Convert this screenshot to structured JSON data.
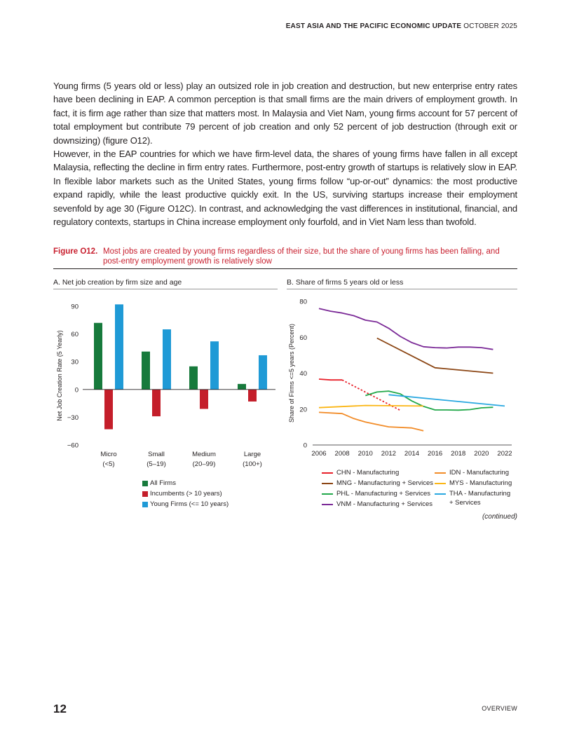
{
  "header": {
    "title": "EAST ASIA AND THE PACIFIC ECONOMIC UPDATE",
    "date": "OCTOBER 2025"
  },
  "paragraphs": [
    "Young firms (5 years old or less) play an outsized role in job creation and destruction, but new enterprise entry rates have been declining in EAP. A common perception is that small firms are the main drivers of employment growth. In fact, it is firm age rather than size that matters most. In Malaysia and Viet Nam, young firms account for 57 percent of total employment but contribute 79 percent of job creation and only 52 percent of job destruction (through exit or downsizing) (figure O12).",
    "However, in the EAP countries for which we have firm-level data, the shares of young firms have fallen in all except Malaysia, reflecting the decline in firm entry rates. Furthermore, post-entry growth of startups is relatively slow in EAP. In flexible labor markets such as the United States, young firms follow “up-or-out” dynamics: the most productive expand rapidly, while the least productive quickly exit. In the US, surviving startups increase their employment sevenfold by age 30 (Figure O12C). In contrast, and acknowledging the vast differences in institutional, financial, and regulatory contexts, startups in China increase employment only fourfold, and in Viet Nam less than twofold."
  ],
  "figure": {
    "label": "Figure O12.",
    "caption": "Most jobs are created by young firms regardless of their size, but the share of young firms has been falling, and post-entry employment growth is relatively slow",
    "continued": "(continued)"
  },
  "chart_data": [
    {
      "type": "bar",
      "title": "A. Net job creation by firm size and age",
      "ylabel": "Net Job Creation Rate (5 Yearly)",
      "ylim": [
        -60,
        90
      ],
      "yticks": [
        "90",
        "60",
        "30",
        "0",
        "−30",
        "−60"
      ],
      "ytick_values": [
        90,
        60,
        30,
        0,
        -30,
        -60
      ],
      "categories": [
        [
          "Micro",
          "(<5)"
        ],
        [
          "Small",
          "(5–19)"
        ],
        [
          "Medium",
          "(20–99)"
        ],
        [
          "Large",
          "(100+)"
        ]
      ],
      "series": [
        {
          "name": "All Firms",
          "color": "#177a3c",
          "values": [
            72,
            41,
            25,
            6
          ]
        },
        {
          "name": "Incumbents (> 10 years)",
          "color": "#c41e2a",
          "values": [
            -43,
            -29,
            -21,
            -13
          ]
        },
        {
          "name": "Young Firms (<= 10 years)",
          "color": "#1f9ad6",
          "values": [
            92,
            65,
            52,
            37
          ]
        }
      ],
      "legend": "bottom",
      "grid": false
    },
    {
      "type": "line",
      "title": "B. Share of firms 5 years old or less",
      "ylabel": "Share of  Firms <=5 years (Percent)",
      "ylim": [
        0,
        80
      ],
      "xlim": [
        2006,
        2022
      ],
      "yticks": [
        "0",
        "20",
        "40",
        "60",
        "80"
      ],
      "ytick_values": [
        0,
        20,
        40,
        60,
        80
      ],
      "xticks": [
        "2006",
        "2008",
        "2010",
        "2012",
        "2014",
        "2016",
        "2018",
        "2020",
        "2022"
      ],
      "xtick_values": [
        2006,
        2008,
        2010,
        2012,
        2014,
        2016,
        2018,
        2020,
        2022
      ],
      "legend": "bottom",
      "grid": false,
      "series": [
        {
          "name": "CHN - Manufacturing",
          "color": "#e8202a",
          "x": [
            2006,
            2007,
            2008
          ],
          "y": [
            36.7,
            36.2,
            36.2
          ]
        },
        {
          "name": "CHN - Manufacturing",
          "color": "#e8202a",
          "dashed": true,
          "x": [
            2008,
            2013
          ],
          "y": [
            36.2,
            19.3
          ]
        },
        {
          "name": "MNG - Manufacturing + Services",
          "color": "#8b4513",
          "x": [
            2011,
            2016,
            2021
          ],
          "y": [
            59.5,
            43,
            40
          ]
        },
        {
          "name": "PHL - Manufacturing + Services",
          "color": "#22a84a",
          "x": [
            2010,
            2011,
            2012,
            2013,
            2014,
            2015,
            2016,
            2017,
            2018,
            2019,
            2020,
            2021
          ],
          "y": [
            27.5,
            29.5,
            30,
            28.5,
            24.5,
            21.5,
            19.5,
            19.5,
            19.4,
            19.7,
            20.7,
            21
          ]
        },
        {
          "name": "VNM - Manufacturing + Services",
          "color": "#7b2a97",
          "x": [
            2006,
            2007,
            2008,
            2009,
            2010,
            2011,
            2012,
            2013,
            2014,
            2015,
            2016,
            2017,
            2018,
            2019,
            2020,
            2021
          ],
          "y": [
            76,
            74.5,
            73.5,
            72,
            69.5,
            68.5,
            65,
            60.5,
            57,
            54.7,
            54.2,
            54,
            54.5,
            54.5,
            54.2,
            53.2
          ]
        },
        {
          "name": "IDN - Manufacturing",
          "color": "#f28c28",
          "x": [
            2006,
            2008,
            2009,
            2010,
            2011,
            2012,
            2014,
            2015
          ],
          "y": [
            18.2,
            17.5,
            14.7,
            12.8,
            11.4,
            10.1,
            9.5,
            7.9
          ]
        },
        {
          "name": "MYS - Manufacturing",
          "color": "#fbb615",
          "x": [
            2006,
            2010,
            2015
          ],
          "y": [
            20.8,
            22,
            21.7
          ]
        },
        {
          "name": "THA - Manufacturing + Services",
          "color": "#29a8e0",
          "x": [
            2012,
            2022
          ],
          "y": [
            28,
            21.7
          ]
        }
      ],
      "legend_entries": [
        {
          "label": "CHN - Manufacturing",
          "color": "#e8202a"
        },
        {
          "label": "MNG - Manufacturing + Services",
          "color": "#8b4513"
        },
        {
          "label": "PHL - Manufacturing + Services",
          "color": "#22a84a"
        },
        {
          "label": "VNM - Manufacturing + Services",
          "color": "#7b2a97"
        },
        {
          "label": "IDN - Manufacturing",
          "color": "#f28c28"
        },
        {
          "label": "MYS - Manufacturing",
          "color": "#fbb615"
        },
        {
          "label": "THA - Manufacturing + Services",
          "color": "#29a8e0"
        }
      ]
    }
  ],
  "footer": {
    "page_number": "12",
    "section": "OVERVIEW"
  }
}
